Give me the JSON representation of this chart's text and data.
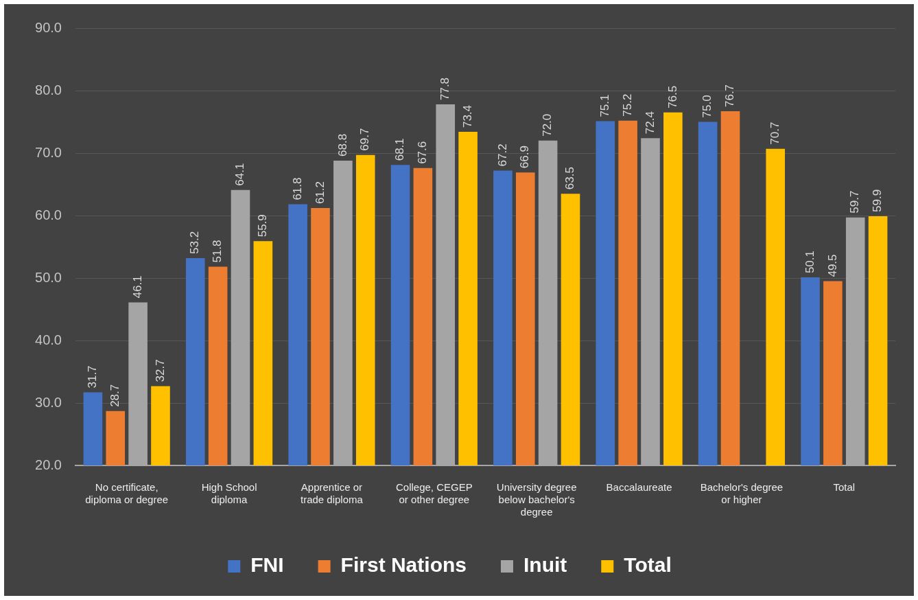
{
  "chart_data": {
    "type": "bar",
    "categories": [
      "No certificate, diploma or degree",
      "High School diploma",
      "Apprentice or trade diploma",
      "College, CEGEP or other degree",
      "University degree below bachelor's degree",
      "Baccalaureate",
      "Bachelor's degree or higher",
      "Total"
    ],
    "series": [
      {
        "name": "FNI",
        "color": "#4472c4",
        "values": [
          31.7,
          53.2,
          61.8,
          68.1,
          67.2,
          75.1,
          75.0,
          50.1
        ],
        "value_labels": [
          "31.7",
          "53.2",
          "61.8",
          "68.1",
          "67.2",
          "75.1",
          "75.0",
          "50.1"
        ]
      },
      {
        "name": "First Nations",
        "color": "#ed7d31",
        "values": [
          28.7,
          51.8,
          61.2,
          67.6,
          66.9,
          75.2,
          76.7,
          49.5
        ],
        "value_labels": [
          "28.7",
          "51.8",
          "61.2",
          "67.6",
          "66.9",
          "75.2",
          "76.7",
          "49.5"
        ]
      },
      {
        "name": "Inuit",
        "color": "#a5a5a5",
        "values": [
          46.1,
          64.1,
          68.8,
          77.8,
          72.0,
          72.4,
          null,
          59.7
        ],
        "value_labels": [
          "46.1",
          "64.1",
          "68.8",
          "77.8",
          "72.0",
          "72.4",
          null,
          "59.7"
        ]
      },
      {
        "name": "Total",
        "color": "#ffc000",
        "values": [
          32.7,
          55.9,
          69.7,
          73.4,
          63.5,
          76.5,
          70.7,
          59.9
        ],
        "value_labels": [
          "32.7",
          "55.9",
          "69.7",
          "73.4",
          "63.5",
          "76.5",
          "70.7",
          "59.9"
        ]
      }
    ],
    "ylim": [
      20,
      90
    ],
    "yticks": [
      {
        "value": 20,
        "label": "20.0"
      },
      {
        "value": 30,
        "label": "30.0"
      },
      {
        "value": 40,
        "label": "40.0"
      },
      {
        "value": 50,
        "label": "50.0"
      },
      {
        "value": 60,
        "label": "60.0"
      },
      {
        "value": 70,
        "label": "70.0"
      },
      {
        "value": 80,
        "label": "80.0"
      },
      {
        "value": 90,
        "label": "90.0"
      }
    ],
    "grid": "y",
    "legend": "bottom"
  }
}
